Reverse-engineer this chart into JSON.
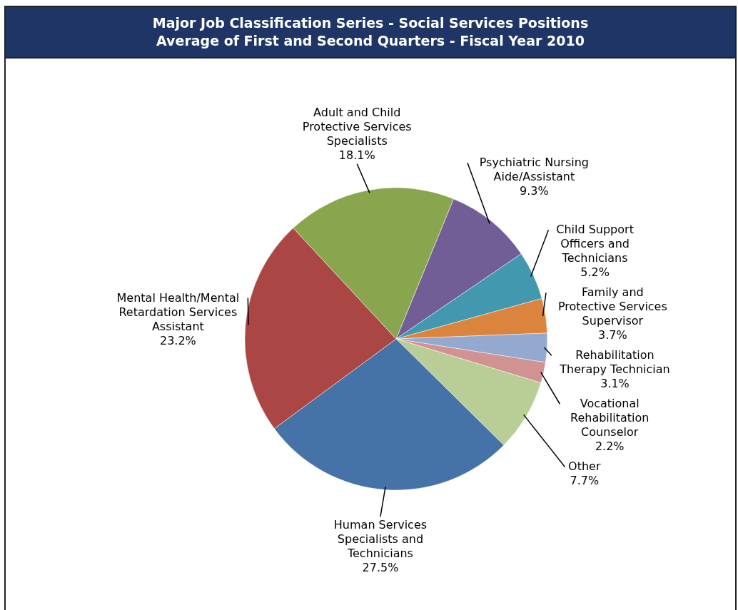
{
  "chart_data": {
    "type": "pie",
    "title": "Major Job Classification Series - Social Services Positions",
    "subtitle": "Average of First and Second Quarters - Fiscal Year 2010",
    "categories": [
      "Psychiatric Nursing Aide/Assistant",
      "Child Support Officers and Technicians",
      "Family and Protective Services Supervisor",
      "Rehabilitation Therapy Technician",
      "Vocational Rehabilitation Counselor",
      "Other",
      "Human Services Specialists and Technicians",
      "Mental Health/Mental Retardation Services Assistant",
      "Adult and Child Protective Services Specialists"
    ],
    "values": [
      9.3,
      5.2,
      3.7,
      3.1,
      2.2,
      7.7,
      27.5,
      23.2,
      18.1
    ],
    "value_labels": [
      "9.3%",
      "5.2%",
      "3.7%",
      "3.1%",
      "2.2%",
      "7.7%",
      "27.5%",
      "23.2%",
      "18.1%"
    ],
    "colors": [
      "#725e96",
      "#4198af",
      "#db843d",
      "#93a9cf",
      "#d19392",
      "#b9cd96",
      "#4572a7",
      "#aa4643",
      "#89a54e"
    ]
  }
}
